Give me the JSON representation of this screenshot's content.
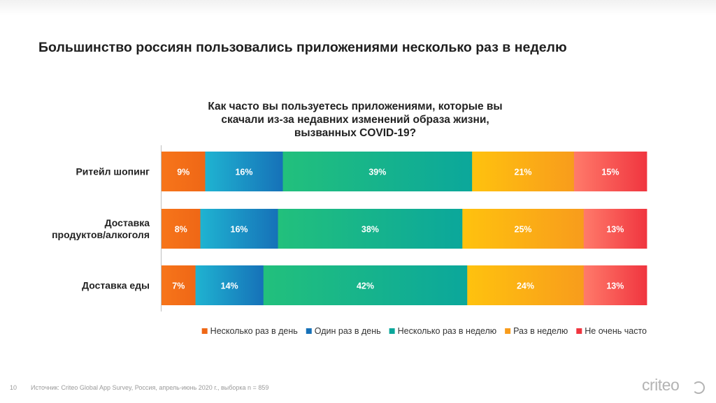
{
  "slide": {
    "title": "Большинство россиян пользовались приложениями несколько раз в неделю",
    "footer_page": "10",
    "footer_source": "Источник: Criteo Global App Survey, Россия, апрель-июнь 2020 г., выборка n = 859",
    "logo_text": "criteo"
  },
  "chart_data": {
    "type": "bar",
    "orientation": "horizontal",
    "stacked": true,
    "normalized_percent": true,
    "title_lines": [
      "Как часто вы пользуетесь приложениями, которые вы",
      "скачали из-за недавних изменений образа жизни,",
      "вызванных COVID-19?"
    ],
    "categories": [
      "Ритейл шопинг",
      "Доставка продуктов/алкоголя",
      "Доставка еды"
    ],
    "category_lines": [
      [
        "Ритейл шопинг"
      ],
      [
        "Доставка",
        "продуктов/алкоголя"
      ],
      [
        "Доставка еды"
      ]
    ],
    "series": [
      {
        "name": "Несколько раз в день",
        "values": [
          9,
          8,
          7
        ],
        "colors": [
          "#f7751a",
          "#ef6716"
        ]
      },
      {
        "name": "Один раз в день",
        "values": [
          16,
          16,
          14
        ],
        "colors": [
          "#1fb3d1",
          "#1671b8"
        ]
      },
      {
        "name": "Несколько раз в неделю",
        "values": [
          39,
          38,
          42
        ],
        "colors": [
          "#22c07c",
          "#0ba79b"
        ]
      },
      {
        "name": "Раз в неделю",
        "values": [
          21,
          25,
          24
        ],
        "colors": [
          "#ffc20e",
          "#f89c1c"
        ]
      },
      {
        "name": "Не очень часто",
        "values": [
          15,
          13,
          13
        ],
        "colors": [
          "#ff7a6a",
          "#f0353f"
        ]
      }
    ],
    "data_label_suffix": "%",
    "legend_position": "bottom",
    "grid": false
  }
}
